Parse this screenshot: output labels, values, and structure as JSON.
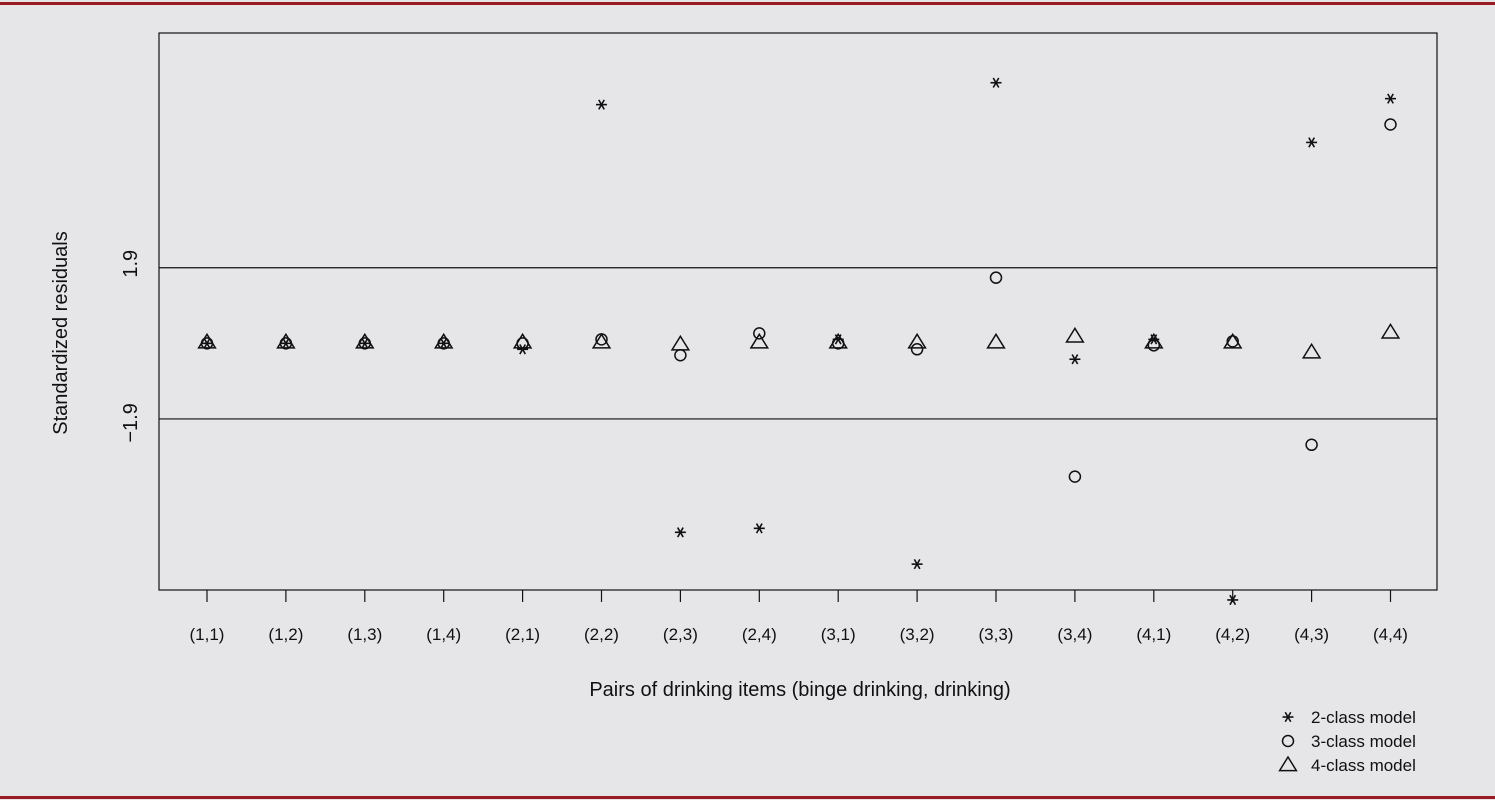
{
  "colors": {
    "background": "#e6e6e9",
    "rule": "#9b1b24",
    "ink": "#111111"
  },
  "chart_data": {
    "type": "scatter",
    "title": "",
    "xlabel": "Pairs of drinking items (binge drinking, drinking)",
    "ylabel": "Standardized residuals",
    "ylim": [
      -6.2,
      7.8
    ],
    "reference_lines": [
      1.9,
      -1.9
    ],
    "reference_labels": [
      "1.9",
      "−1.9"
    ],
    "categories": [
      "(1,1)",
      "(1,2)",
      "(1,3)",
      "(1,4)",
      "(2,1)",
      "(2,2)",
      "(2,3)",
      "(2,4)",
      "(3,1)",
      "(3,2)",
      "(3,3)",
      "(3,4)",
      "(4,1)",
      "(4,2)",
      "(4,3)",
      "(4,4)"
    ],
    "legend_position": "bottom-right",
    "series": [
      {
        "name": "2-class model",
        "marker": "asterisk",
        "values": [
          0.0,
          0.0,
          0.0,
          0.0,
          -0.15,
          6.0,
          -4.75,
          -4.65,
          0.1,
          -5.55,
          6.55,
          -0.4,
          0.1,
          -6.45,
          5.05,
          6.15
        ]
      },
      {
        "name": "3-class model",
        "marker": "circle",
        "values": [
          0.0,
          0.0,
          0.0,
          0.0,
          0.0,
          0.1,
          -0.3,
          0.25,
          0.0,
          -0.15,
          1.65,
          -3.35,
          -0.05,
          0.05,
          -2.55,
          5.5
        ]
      },
      {
        "name": "4-class model",
        "marker": "triangle",
        "values": [
          0.0,
          0.0,
          0.0,
          0.0,
          0.0,
          0.0,
          -0.05,
          0.0,
          0.0,
          0.0,
          0.0,
          0.15,
          0.0,
          0.0,
          -0.25,
          0.25
        ]
      }
    ]
  }
}
